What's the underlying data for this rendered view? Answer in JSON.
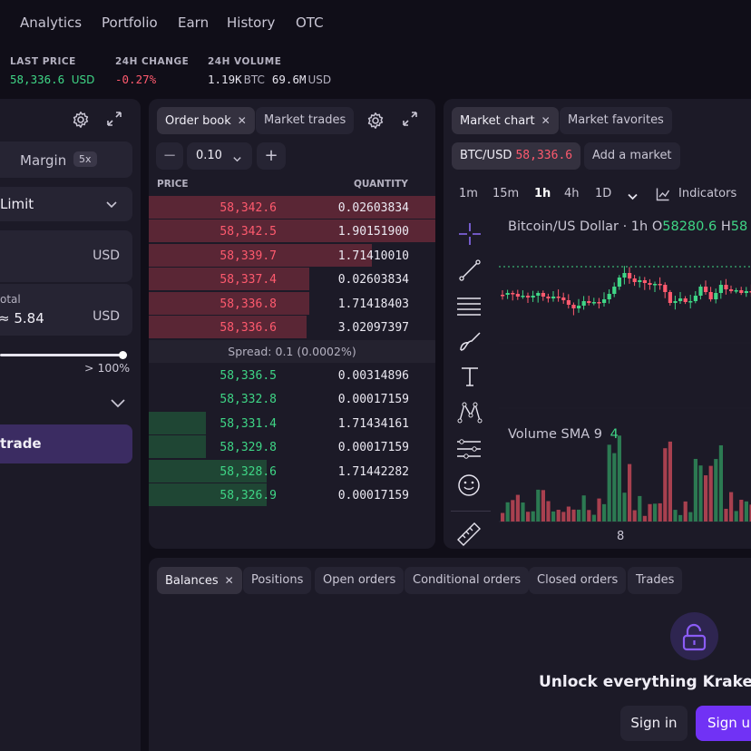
{
  "nav": [
    "Analytics",
    "Portfolio",
    "Earn",
    "History",
    "OTC"
  ],
  "stats": {
    "last_price_label": "LAST PRICE",
    "last_price": "58,336.6",
    "last_price_unit": "USD",
    "change_label": "24H CHANGE",
    "change": "-0.27%",
    "volume_label": "24H VOLUME",
    "volume_btc": "1.19K",
    "volume_btc_unit": "BTC",
    "volume_usd": "69.6M",
    "volume_usd_unit": "USD"
  },
  "order_form": {
    "margin_label": "Margin",
    "margin_badge": "5x",
    "order_type": "Limit",
    "price_unit": "USD",
    "total_label": "otal",
    "total_value": "≈ 5.84",
    "total_unit": "USD",
    "slider_label": "> 100%",
    "slider_fraction": 1.0,
    "trade_button": "trade"
  },
  "order_book": {
    "tabs": [
      "Order book",
      "Market trades"
    ],
    "step_value": "0.10",
    "price_header": "PRICE",
    "quantity_header": "QUANTITY",
    "spread": "Spread: 0.1 (0.0002%)",
    "asks": [
      {
        "price": "58,342.6",
        "qty": "0.02603834",
        "depth": 1.0
      },
      {
        "price": "58,342.5",
        "qty": "1.90151900",
        "depth": 1.0
      },
      {
        "price": "58,339.7",
        "qty": "1.71410010",
        "depth": 0.78
      },
      {
        "price": "58,337.4",
        "qty": "0.02603834",
        "depth": 0.56
      },
      {
        "price": "58,336.8",
        "qty": "1.71418403",
        "depth": 0.56
      },
      {
        "price": "58,336.6",
        "qty": "3.02097397",
        "depth": 0.55
      }
    ],
    "bids": [
      {
        "price": "58,336.5",
        "qty": "0.00314896",
        "depth": 0
      },
      {
        "price": "58,332.8",
        "qty": "0.00017159",
        "depth": 0
      },
      {
        "price": "58,331.4",
        "qty": "1.71434161",
        "depth": 0.2
      },
      {
        "price": "58,329.8",
        "qty": "0.00017159",
        "depth": 0.2
      },
      {
        "price": "58,328.6",
        "qty": "1.71442282",
        "depth": 0.41
      },
      {
        "price": "58,326.9",
        "qty": "0.00017159",
        "depth": 0.41
      }
    ]
  },
  "chart": {
    "tabs": [
      "Market chart",
      "Market favorites"
    ],
    "pair": "BTC/USD",
    "pair_price": "58,336.6",
    "add_market": "Add a market",
    "intervals": [
      "1m",
      "15m",
      "1h",
      "4h",
      "1D"
    ],
    "active_interval": "1h",
    "indicators_label": "Indicators",
    "symbol_title": "Bitcoin/US Dollar · 1h",
    "ohlc_o_label": "O",
    "ohlc_o": "58280.6",
    "ohlc_h_label": "H",
    "ohlc_h": "58",
    "volume_label": "Volume SMA 9",
    "volume_value": "4",
    "x_tick": "8"
  },
  "bottom": {
    "tabs": [
      "Balances",
      "Positions",
      "Open orders",
      "Conditional orders",
      "Closed orders",
      "Trades"
    ],
    "unlock_title": "Unlock everything Kraken Pr",
    "sign_in": "Sign in",
    "sign_up": "Sign up"
  },
  "colors": {
    "background": "#100e18",
    "panel": "#1c1a27",
    "green": "#3fd686",
    "red": "#ff5a6e",
    "accent": "#7132f5"
  }
}
